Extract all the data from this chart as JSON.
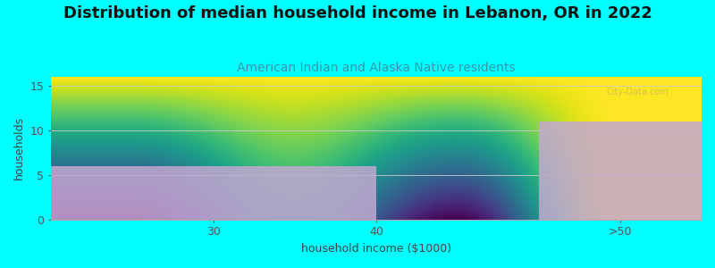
{
  "title": "Distribution of median household income in Lebanon, OR in 2022",
  "subtitle": "American Indian and Alaska Native residents",
  "xlabel": "household income ($1000)",
  "ylabel": "households",
  "categories": [
    "30",
    "40",
    ">50"
  ],
  "values": [
    6,
    0,
    11
  ],
  "bar_color": "#C3A8D1",
  "bar_alpha": 0.85,
  "background_color": "#00FFFF",
  "plot_bg_top": "#FFFFFF",
  "plot_bg_bottom": "#D8EDD8",
  "ylim": [
    0,
    16
  ],
  "yticks": [
    0,
    5,
    10,
    15
  ],
  "title_fontsize": 13,
  "subtitle_fontsize": 10,
  "subtitle_color": "#3399AA",
  "axis_label_fontsize": 9,
  "tick_fontsize": 9,
  "watermark": "City-Data.com",
  "grid_color": "#CCCCCC",
  "n_bins": 3,
  "bin_edges": [
    0,
    2,
    3,
    4
  ],
  "xtick_positions": [
    1,
    2,
    3
  ],
  "xtick_centers": [
    1,
    2,
    3
  ]
}
